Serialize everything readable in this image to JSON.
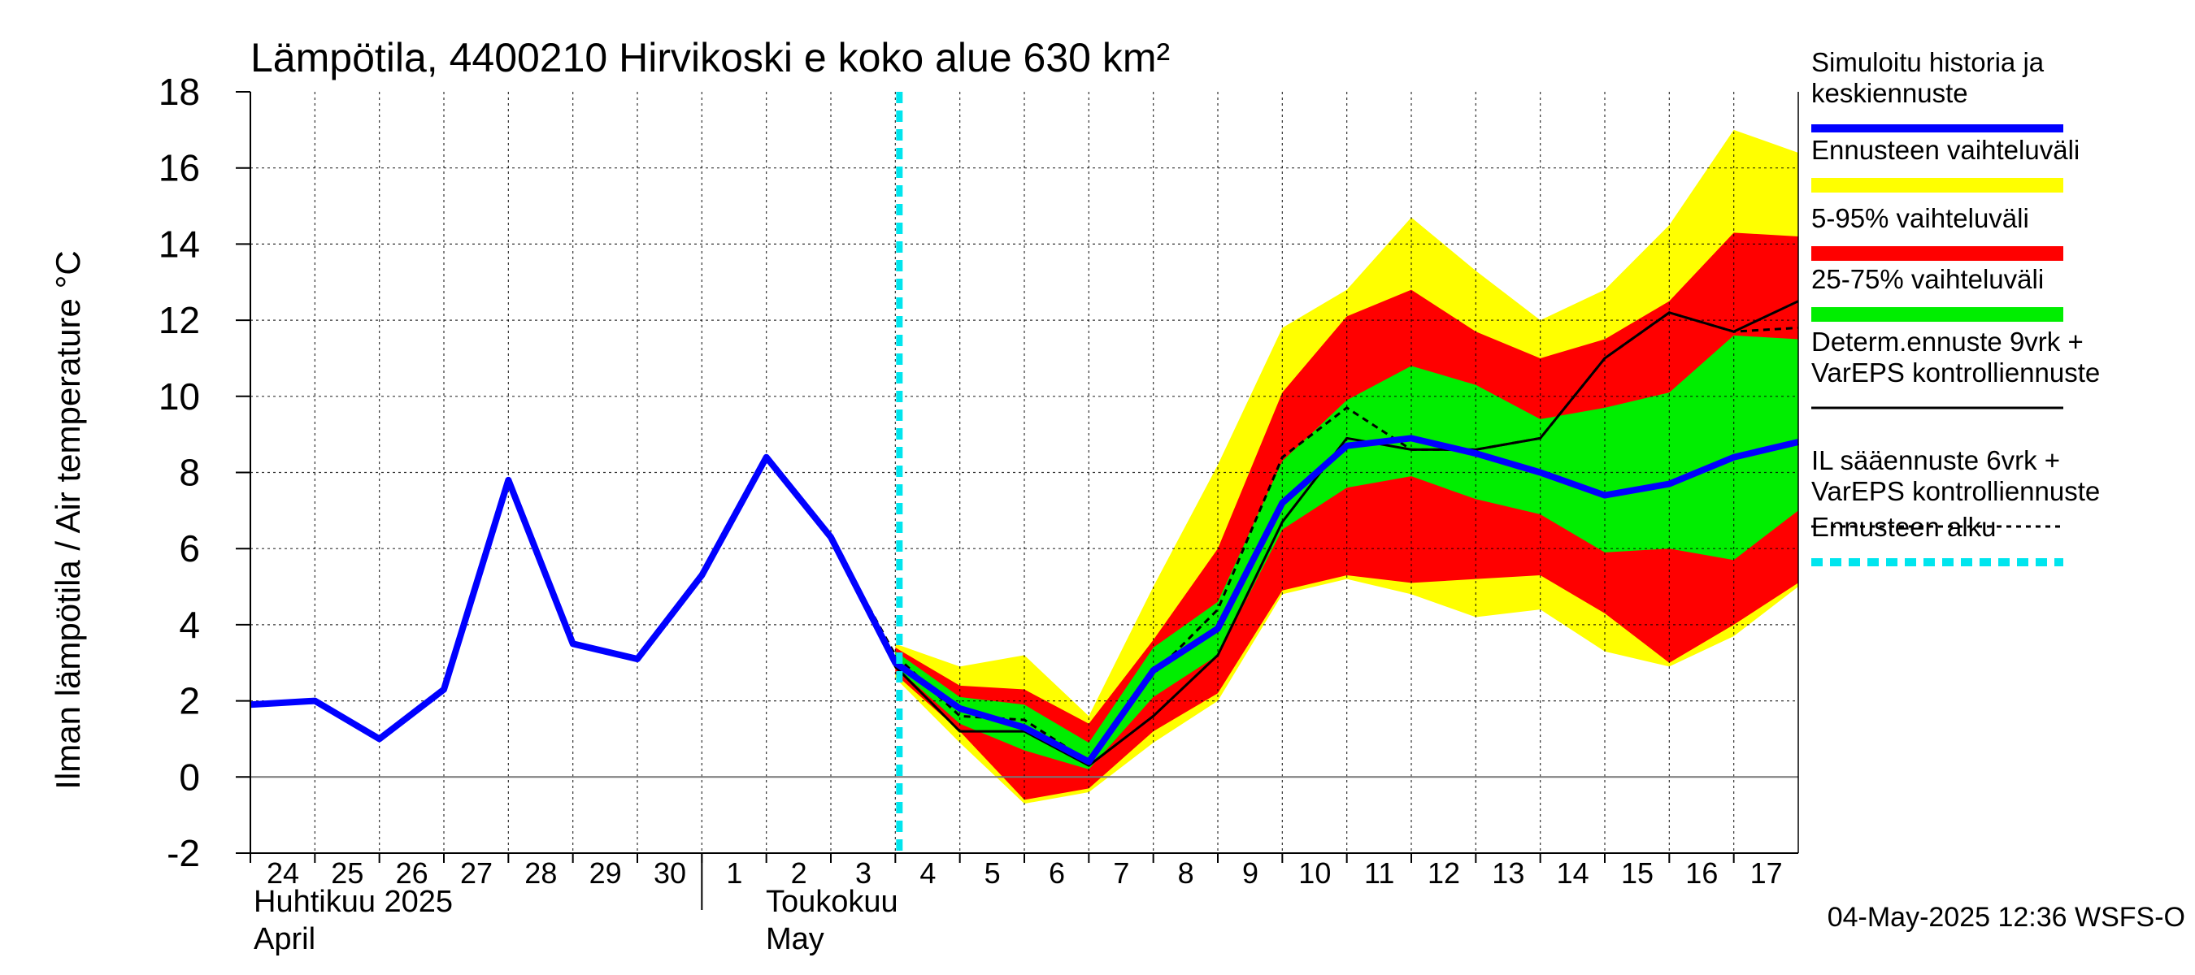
{
  "chart_data": {
    "type": "line",
    "title": "Lämpötila, 4400210 Hirvikoski e koko alue 630 km²",
    "ylabel": "Ilman lämpötila / Air temperature   °C",
    "ylim": [
      -2,
      18
    ],
    "yticks": [
      -2,
      0,
      2,
      4,
      6,
      8,
      10,
      12,
      14,
      16,
      18
    ],
    "x_range": [
      "2025-04-24",
      "2025-05-18"
    ],
    "x_tick_labels": [
      "24",
      "25",
      "26",
      "27",
      "28",
      "29",
      "30",
      "1",
      "2",
      "3",
      "4",
      "5",
      "6",
      "7",
      "8",
      "9",
      "10",
      "11",
      "12",
      "13",
      "14",
      "15",
      "16",
      "17"
    ],
    "month_labels": [
      {
        "fi": "Huhtikuu  2025",
        "en": "April"
      },
      {
        "fi": "Toukokuu",
        "en": "May"
      }
    ],
    "forecast_start": "2025-05-04",
    "grid": true,
    "legend_position": "right",
    "colors": {
      "simulated": "#0000ff",
      "total_range": "#ffff00",
      "p5_95": "#ff0000",
      "p25_75": "#00ee00",
      "deterministic": "#000000",
      "il_forecast": "#000000",
      "forecast_start": "#00e5ee"
    },
    "series": [
      {
        "name": "Simuloitu historia ja keskiennuste",
        "x": [
          "2025-04-24",
          "2025-04-25",
          "2025-04-26",
          "2025-04-27",
          "2025-04-28",
          "2025-04-29",
          "2025-04-30",
          "2025-05-01",
          "2025-05-02",
          "2025-05-03",
          "2025-05-04",
          "2025-05-05",
          "2025-05-06",
          "2025-05-07",
          "2025-05-08",
          "2025-05-09",
          "2025-05-10",
          "2025-05-11",
          "2025-05-12",
          "2025-05-13",
          "2025-05-14",
          "2025-05-15",
          "2025-05-16",
          "2025-05-17",
          "2025-05-18"
        ],
        "y": [
          1.9,
          2.0,
          1.0,
          2.3,
          7.8,
          3.5,
          3.1,
          5.3,
          8.4,
          6.3,
          3.0,
          1.8,
          1.3,
          0.4,
          2.8,
          3.9,
          7.2,
          8.7,
          8.9,
          8.5,
          8.0,
          7.4,
          7.7,
          8.4,
          8.8
        ]
      },
      {
        "name": "Determ.ennuste 9vrk + VarEPS kontrolliennuste",
        "x": [
          "2025-05-02",
          "2025-05-03",
          "2025-05-04",
          "2025-05-05",
          "2025-05-06",
          "2025-05-07",
          "2025-05-08",
          "2025-05-09",
          "2025-05-10",
          "2025-05-11",
          "2025-05-12",
          "2025-05-13",
          "2025-05-14",
          "2025-05-15",
          "2025-05-16",
          "2025-05-17",
          "2025-05-18"
        ],
        "y": [
          8.4,
          6.3,
          2.9,
          1.2,
          1.2,
          0.3,
          1.6,
          3.2,
          6.7,
          8.9,
          8.6,
          8.6,
          8.9,
          11.0,
          12.2,
          11.7,
          12.5
        ]
      },
      {
        "name": "IL sääennuste 6vrk + VarEPS kontrolliennuste",
        "x": [
          "2025-05-02",
          "2025-05-03",
          "2025-05-04",
          "2025-05-05",
          "2025-05-06",
          "2025-05-07",
          "2025-05-08",
          "2025-05-09",
          "2025-05-10",
          "2025-05-11",
          "2025-05-12",
          "2025-05-13",
          "2025-05-14",
          "2025-05-15",
          "2025-05-16",
          "2025-05-17",
          "2025-05-18"
        ],
        "y": [
          8.4,
          6.3,
          3.2,
          1.6,
          1.5,
          0.4,
          2.7,
          4.4,
          8.4,
          9.7,
          8.6,
          8.6,
          8.9,
          11.0,
          12.2,
          11.7,
          11.8
        ]
      }
    ],
    "bands": [
      {
        "name": "Ennusteen vaihteluväli",
        "x": [
          "2025-05-04",
          "2025-05-05",
          "2025-05-06",
          "2025-05-07",
          "2025-05-08",
          "2025-05-09",
          "2025-05-10",
          "2025-05-11",
          "2025-05-12",
          "2025-05-13",
          "2025-05-14",
          "2025-05-15",
          "2025-05-16",
          "2025-05-17",
          "2025-05-18"
        ],
        "low": [
          2.6,
          0.9,
          -0.7,
          -0.4,
          0.9,
          2.0,
          4.8,
          5.2,
          4.8,
          4.2,
          4.4,
          3.3,
          2.9,
          3.7,
          5.0
        ],
        "high": [
          3.5,
          2.9,
          3.2,
          1.6,
          5.0,
          8.2,
          11.8,
          12.8,
          14.7,
          13.3,
          12.0,
          12.8,
          14.5,
          17.0,
          16.4
        ]
      },
      {
        "name": "5-95% vaihteluväli",
        "x": [
          "2025-05-04",
          "2025-05-05",
          "2025-05-06",
          "2025-05-07",
          "2025-05-08",
          "2025-05-09",
          "2025-05-10",
          "2025-05-11",
          "2025-05-12",
          "2025-05-13",
          "2025-05-14",
          "2025-05-15",
          "2025-05-16",
          "2025-05-17",
          "2025-05-18"
        ],
        "low": [
          2.7,
          1.2,
          -0.6,
          -0.3,
          1.2,
          2.2,
          4.9,
          5.3,
          5.1,
          5.2,
          5.3,
          4.3,
          3.0,
          4.0,
          5.1
        ],
        "high": [
          3.4,
          2.4,
          2.3,
          1.4,
          3.6,
          6.0,
          10.1,
          12.1,
          12.8,
          11.7,
          11.0,
          11.5,
          12.5,
          14.3,
          14.2
        ]
      },
      {
        "name": "25-75% vaihteluväli",
        "x": [
          "2025-05-04",
          "2025-05-05",
          "2025-05-06",
          "2025-05-07",
          "2025-05-08",
          "2025-05-09",
          "2025-05-10",
          "2025-05-11",
          "2025-05-12",
          "2025-05-13",
          "2025-05-14",
          "2025-05-15",
          "2025-05-16",
          "2025-05-17",
          "2025-05-18"
        ],
        "low": [
          2.9,
          1.4,
          0.7,
          0.2,
          2.1,
          3.2,
          6.5,
          7.6,
          7.9,
          7.3,
          6.9,
          5.9,
          6.0,
          5.7,
          7.0
        ],
        "high": [
          3.3,
          2.1,
          1.9,
          0.9,
          3.4,
          4.6,
          8.3,
          9.9,
          10.8,
          10.3,
          9.4,
          9.7,
          10.1,
          11.6,
          11.5
        ]
      }
    ]
  },
  "legend": {
    "simulated": [
      "Simuloitu historia ja",
      "keskiennuste"
    ],
    "total_range": [
      "Ennusteen vaihteluväli"
    ],
    "p5_95": [
      "5-95% vaihteluväli"
    ],
    "p25_75": [
      "25-75% vaihteluväli"
    ],
    "deterministic": [
      "Determ.ennuste 9vrk +",
      "VarEPS kontrolliennuste"
    ],
    "il_forecast": [
      "IL sääennuste 6vrk  +",
      "  VarEPS kontrolliennuste"
    ],
    "forecast_start": [
      "Ennusteen alku"
    ]
  },
  "footer": "04-May-2025 12:36 WSFS-O"
}
